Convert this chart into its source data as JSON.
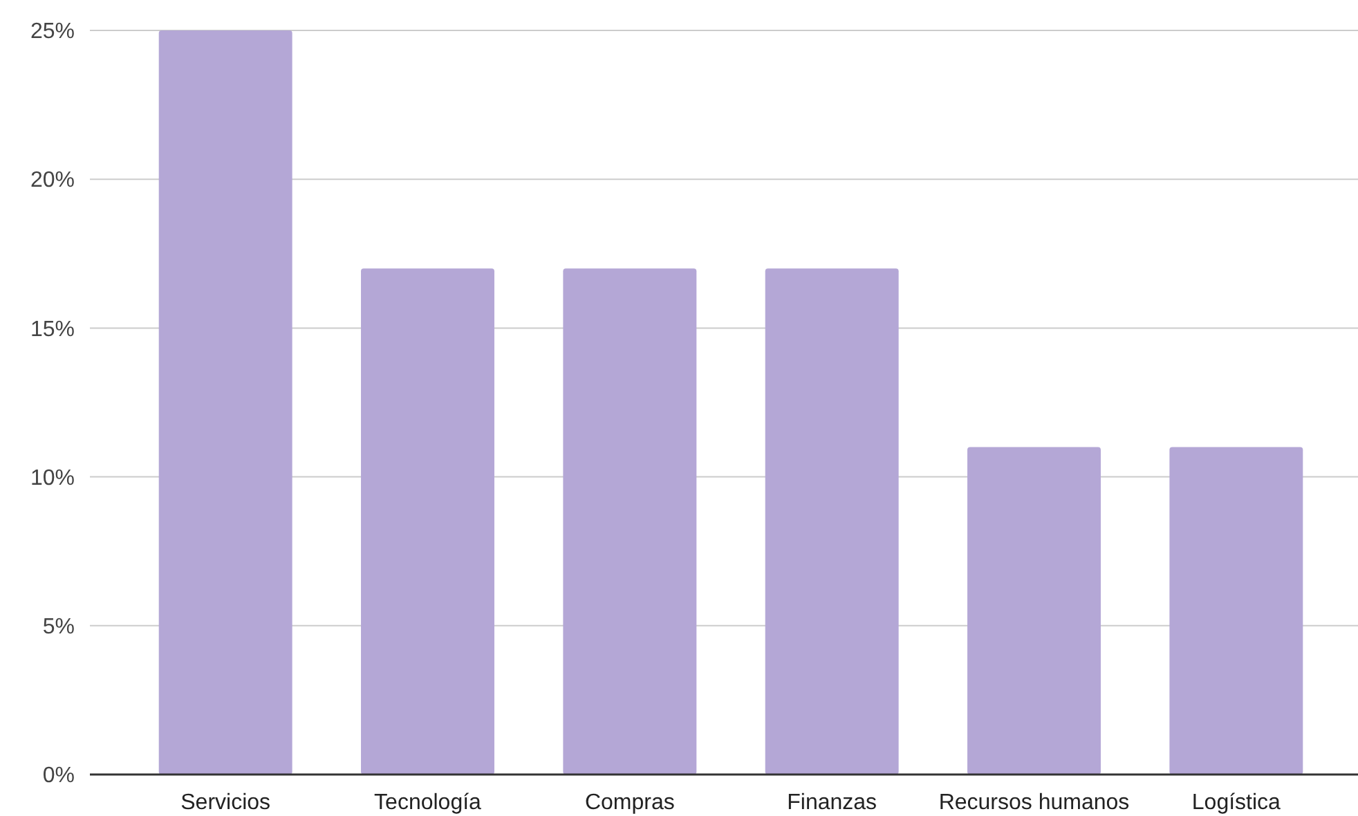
{
  "chart_data": {
    "type": "bar",
    "categories": [
      "Servicios",
      "Tecnología",
      "Compras",
      "Finanzas",
      "Recursos humanos",
      "Logística"
    ],
    "values": [
      25,
      17,
      17,
      17,
      11,
      11
    ],
    "color": "#b4a7d6",
    "ylim": [
      0,
      25
    ],
    "yticks": [
      {
        "value": 0,
        "label": "0%"
      },
      {
        "value": 5,
        "label": "5%"
      },
      {
        "value": 10,
        "label": "10%"
      },
      {
        "value": 15,
        "label": "15%"
      },
      {
        "value": 20,
        "label": "20%"
      },
      {
        "value": 25,
        "label": "25%"
      }
    ],
    "grid": "y"
  }
}
